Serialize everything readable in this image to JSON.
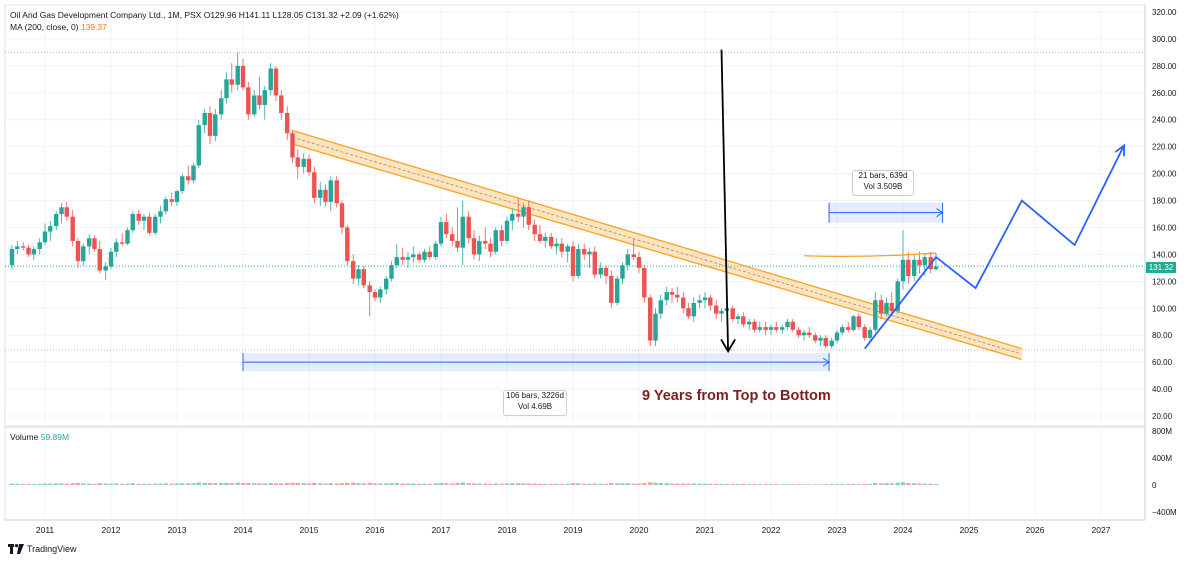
{
  "header": {
    "title": "Oil And Gas Development Company Ltd., 1M, PSX",
    "ohlc": "O129.96 H141.11 L128.05 C131.32 +2.09 (+1.62%)",
    "ma_label": "MA (200, close, 0)",
    "ma_value": "139.37"
  },
  "volume_panel": {
    "label": "Volume",
    "value": "59.89M"
  },
  "current_price_label": "131.32",
  "annotations": {
    "long_range": {
      "line1": "106 bars, 3226d",
      "line2": "Vol 4.69B"
    },
    "short_range": {
      "line1": "21 bars, 639d",
      "line2": "Vol 3.509B"
    },
    "note": "9 Years from Top to Bottom"
  },
  "branding": "TradingView",
  "colors": {
    "up": "#26a69a",
    "down": "#ef5350",
    "channel": "#f7a325",
    "projection": "#2962ff",
    "price_line": "#22ab94",
    "ma": "#f57c00"
  },
  "chart_data": {
    "type": "candlestick",
    "y_axis_ticks": [
      "320.00",
      "300.00",
      "280.00",
      "260.00",
      "240.00",
      "220.00",
      "200.00",
      "180.00",
      "160.00",
      "140.00",
      "120.00",
      "100.00",
      "80.00",
      "60.00",
      "40.00",
      "20.00"
    ],
    "volume_axis_ticks": [
      "800M",
      "400M",
      "0",
      "−400M"
    ],
    "x_axis_ticks": [
      "2011",
      "2012",
      "2013",
      "2014",
      "2015",
      "2016",
      "2017",
      "2018",
      "2019",
      "2020",
      "2021",
      "2022",
      "2023",
      "2024",
      "2025",
      "2026",
      "2027"
    ],
    "ylim": [
      10,
      324
    ],
    "reference_lines": {
      "high": 290,
      "low": 69,
      "current": 131.32
    },
    "ma200_value": 139.37,
    "candles": [
      [
        2010.5,
        132,
        147,
        129,
        144,
        20
      ],
      [
        2010.58,
        144,
        150,
        140,
        146,
        18
      ],
      [
        2010.67,
        146,
        149,
        143,
        145,
        15
      ],
      [
        2010.75,
        145,
        147,
        138,
        140,
        14
      ],
      [
        2010.83,
        140,
        146,
        136,
        144,
        13
      ],
      [
        2010.92,
        144,
        152,
        140,
        149,
        17
      ],
      [
        2011.0,
        149,
        163,
        147,
        157,
        22
      ],
      [
        2011.08,
        157,
        165,
        150,
        161,
        21
      ],
      [
        2011.17,
        161,
        172,
        158,
        170,
        25
      ],
      [
        2011.25,
        170,
        178,
        163,
        175,
        24
      ],
      [
        2011.33,
        175,
        179,
        165,
        168,
        19
      ],
      [
        2011.42,
        168,
        173,
        146,
        150,
        27
      ],
      [
        2011.5,
        150,
        152,
        130,
        135,
        30
      ],
      [
        2011.58,
        135,
        148,
        132,
        146,
        24
      ],
      [
        2011.67,
        146,
        155,
        140,
        152,
        20
      ],
      [
        2011.75,
        152,
        154,
        142,
        144,
        16
      ],
      [
        2011.83,
        144,
        150,
        126,
        128,
        28
      ],
      [
        2011.92,
        128,
        134,
        121,
        131,
        22
      ],
      [
        2012.0,
        131,
        145,
        129,
        142,
        20
      ],
      [
        2012.08,
        142,
        152,
        138,
        149,
        22
      ],
      [
        2012.17,
        149,
        156,
        146,
        148,
        18
      ],
      [
        2012.25,
        148,
        160,
        147,
        158,
        20
      ],
      [
        2012.33,
        158,
        172,
        156,
        170,
        26
      ],
      [
        2012.42,
        170,
        173,
        162,
        165,
        18
      ],
      [
        2012.5,
        165,
        170,
        158,
        168,
        16
      ],
      [
        2012.58,
        168,
        171,
        154,
        156,
        18
      ],
      [
        2012.67,
        156,
        170,
        154,
        168,
        20
      ],
      [
        2012.75,
        168,
        176,
        163,
        172,
        22
      ],
      [
        2012.83,
        172,
        183,
        170,
        181,
        24
      ],
      [
        2012.92,
        181,
        186,
        176,
        179,
        20
      ],
      [
        2013.0,
        179,
        188,
        176,
        187,
        22
      ],
      [
        2013.08,
        187,
        200,
        185,
        198,
        26
      ],
      [
        2013.17,
        198,
        206,
        192,
        195,
        24
      ],
      [
        2013.25,
        195,
        208,
        193,
        206,
        26
      ],
      [
        2013.33,
        206,
        240,
        204,
        236,
        38
      ],
      [
        2013.42,
        236,
        248,
        230,
        245,
        32
      ],
      [
        2013.5,
        245,
        250,
        222,
        228,
        30
      ],
      [
        2013.58,
        228,
        248,
        224,
        244,
        28
      ],
      [
        2013.67,
        244,
        262,
        240,
        256,
        30
      ],
      [
        2013.75,
        256,
        275,
        252,
        270,
        32
      ],
      [
        2013.83,
        270,
        282,
        260,
        266,
        28
      ],
      [
        2013.92,
        266,
        290,
        262,
        280,
        34
      ],
      [
        2014.0,
        280,
        285,
        262,
        264,
        28
      ],
      [
        2014.08,
        264,
        268,
        240,
        244,
        30
      ],
      [
        2014.17,
        244,
        262,
        242,
        258,
        26
      ],
      [
        2014.25,
        258,
        272,
        248,
        251,
        26
      ],
      [
        2014.33,
        251,
        265,
        240,
        262,
        24
      ],
      [
        2014.42,
        262,
        282,
        258,
        278,
        30
      ],
      [
        2014.5,
        278,
        280,
        254,
        258,
        26
      ],
      [
        2014.58,
        258,
        262,
        240,
        245,
        24
      ],
      [
        2014.67,
        245,
        250,
        225,
        230,
        30
      ],
      [
        2014.75,
        230,
        232,
        208,
        212,
        34
      ],
      [
        2014.83,
        212,
        218,
        196,
        205,
        32
      ],
      [
        2014.92,
        205,
        215,
        200,
        211,
        26
      ],
      [
        2015.0,
        211,
        214,
        198,
        201,
        24
      ],
      [
        2015.08,
        201,
        205,
        178,
        182,
        32
      ],
      [
        2015.17,
        182,
        194,
        176,
        188,
        26
      ],
      [
        2015.25,
        188,
        192,
        176,
        179,
        22
      ],
      [
        2015.33,
        179,
        198,
        172,
        195,
        28
      ],
      [
        2015.42,
        195,
        198,
        175,
        178,
        22
      ],
      [
        2015.5,
        178,
        180,
        155,
        160,
        30
      ],
      [
        2015.58,
        160,
        162,
        132,
        135,
        34
      ],
      [
        2015.67,
        135,
        140,
        118,
        122,
        36
      ],
      [
        2015.75,
        122,
        132,
        117,
        129,
        26
      ],
      [
        2015.83,
        129,
        131,
        115,
        117,
        24
      ],
      [
        2015.92,
        117,
        120,
        94,
        112,
        32
      ],
      [
        2016.0,
        112,
        114,
        105,
        108,
        24
      ],
      [
        2016.08,
        108,
        116,
        104,
        114,
        22
      ],
      [
        2016.17,
        114,
        124,
        110,
        122,
        24
      ],
      [
        2016.25,
        122,
        135,
        120,
        132,
        26
      ],
      [
        2016.33,
        132,
        148,
        130,
        138,
        28
      ],
      [
        2016.42,
        138,
        145,
        132,
        136,
        22
      ],
      [
        2016.5,
        136,
        142,
        130,
        138,
        20
      ],
      [
        2016.58,
        138,
        146,
        134,
        140,
        22
      ],
      [
        2016.67,
        140,
        142,
        134,
        136,
        18
      ],
      [
        2016.75,
        136,
        144,
        134,
        142,
        20
      ],
      [
        2016.83,
        142,
        146,
        136,
        138,
        18
      ],
      [
        2016.92,
        138,
        150,
        136,
        148,
        24
      ],
      [
        2017.0,
        148,
        168,
        146,
        164,
        30
      ],
      [
        2017.08,
        164,
        170,
        152,
        155,
        26
      ],
      [
        2017.17,
        155,
        160,
        146,
        150,
        22
      ],
      [
        2017.25,
        150,
        175,
        142,
        145,
        32
      ],
      [
        2017.33,
        145,
        180,
        132,
        168,
        38
      ],
      [
        2017.42,
        168,
        172,
        148,
        152,
        26
      ],
      [
        2017.5,
        152,
        158,
        136,
        140,
        24
      ],
      [
        2017.58,
        140,
        154,
        135,
        150,
        22
      ],
      [
        2017.67,
        150,
        160,
        144,
        148,
        20
      ],
      [
        2017.75,
        148,
        152,
        138,
        142,
        18
      ],
      [
        2017.83,
        142,
        160,
        140,
        158,
        24
      ],
      [
        2017.92,
        158,
        162,
        146,
        150,
        20
      ],
      [
        2018.0,
        150,
        168,
        148,
        165,
        24
      ],
      [
        2018.08,
        165,
        174,
        158,
        170,
        26
      ],
      [
        2018.17,
        170,
        182,
        164,
        168,
        26
      ],
      [
        2018.25,
        168,
        178,
        160,
        175,
        24
      ],
      [
        2018.33,
        175,
        180,
        158,
        162,
        22
      ],
      [
        2018.42,
        162,
        166,
        150,
        155,
        20
      ],
      [
        2018.5,
        155,
        162,
        148,
        150,
        18
      ],
      [
        2018.58,
        150,
        156,
        145,
        153,
        18
      ],
      [
        2018.67,
        153,
        156,
        144,
        146,
        16
      ],
      [
        2018.75,
        146,
        152,
        140,
        148,
        18
      ],
      [
        2018.83,
        148,
        152,
        138,
        142,
        16
      ],
      [
        2018.92,
        142,
        148,
        134,
        146,
        18
      ],
      [
        2019.0,
        146,
        150,
        120,
        124,
        28
      ],
      [
        2019.08,
        124,
        148,
        122,
        144,
        26
      ],
      [
        2019.17,
        144,
        148,
        136,
        140,
        20
      ],
      [
        2019.25,
        140,
        145,
        130,
        142,
        18
      ],
      [
        2019.33,
        142,
        146,
        122,
        125,
        22
      ],
      [
        2019.42,
        125,
        134,
        122,
        130,
        18
      ],
      [
        2019.5,
        130,
        132,
        118,
        124,
        18
      ],
      [
        2019.58,
        124,
        128,
        100,
        104,
        28
      ],
      [
        2019.67,
        104,
        124,
        102,
        122,
        26
      ],
      [
        2019.75,
        122,
        134,
        118,
        132,
        24
      ],
      [
        2019.83,
        132,
        144,
        128,
        140,
        26
      ],
      [
        2019.92,
        140,
        152,
        136,
        138,
        22
      ],
      [
        2020.0,
        138,
        142,
        126,
        130,
        22
      ],
      [
        2020.08,
        130,
        132,
        104,
        108,
        30
      ],
      [
        2020.17,
        108,
        110,
        72,
        76,
        40
      ],
      [
        2020.25,
        76,
        100,
        72,
        96,
        34
      ],
      [
        2020.33,
        96,
        110,
        92,
        106,
        30
      ],
      [
        2020.42,
        106,
        116,
        102,
        112,
        28
      ],
      [
        2020.5,
        112,
        115,
        104,
        110,
        22
      ],
      [
        2020.58,
        110,
        116,
        104,
        108,
        20
      ],
      [
        2020.67,
        108,
        112,
        96,
        100,
        22
      ],
      [
        2020.75,
        100,
        104,
        92,
        94,
        20
      ],
      [
        2020.83,
        94,
        108,
        90,
        104,
        22
      ],
      [
        2020.92,
        104,
        110,
        100,
        106,
        20
      ],
      [
        2021.0,
        106,
        112,
        100,
        108,
        20
      ],
      [
        2021.08,
        108,
        110,
        98,
        102,
        18
      ],
      [
        2021.17,
        102,
        106,
        92,
        96,
        18
      ],
      [
        2021.25,
        96,
        100,
        90,
        98,
        16
      ],
      [
        2021.33,
        98,
        104,
        94,
        100,
        16
      ],
      [
        2021.42,
        100,
        102,
        90,
        92,
        16
      ],
      [
        2021.5,
        92,
        96,
        88,
        94,
        14
      ],
      [
        2021.58,
        94,
        97,
        86,
        88,
        14
      ],
      [
        2021.67,
        88,
        92,
        84,
        90,
        12
      ],
      [
        2021.75,
        90,
        92,
        82,
        84,
        14
      ],
      [
        2021.83,
        84,
        90,
        82,
        86,
        12
      ],
      [
        2021.92,
        86,
        90,
        80,
        84,
        12
      ],
      [
        2022.0,
        84,
        88,
        80,
        86,
        12
      ],
      [
        2022.08,
        86,
        90,
        82,
        84,
        10
      ],
      [
        2022.17,
        84,
        88,
        81,
        86,
        10
      ],
      [
        2022.25,
        86,
        92,
        84,
        90,
        12
      ],
      [
        2022.33,
        90,
        92,
        82,
        84,
        12
      ],
      [
        2022.42,
        84,
        86,
        78,
        80,
        12
      ],
      [
        2022.5,
        80,
        84,
        76,
        82,
        10
      ],
      [
        2022.58,
        82,
        86,
        78,
        80,
        10
      ],
      [
        2022.67,
        80,
        82,
        74,
        76,
        10
      ],
      [
        2022.75,
        76,
        80,
        72,
        78,
        10
      ],
      [
        2022.83,
        78,
        80,
        70,
        72,
        12
      ],
      [
        2022.92,
        72,
        78,
        70,
        76,
        12
      ],
      [
        2023.0,
        76,
        84,
        74,
        82,
        14
      ],
      [
        2023.08,
        82,
        88,
        80,
        86,
        14
      ],
      [
        2023.17,
        86,
        90,
        82,
        84,
        14
      ],
      [
        2023.25,
        84,
        95,
        83,
        94,
        16
      ],
      [
        2023.33,
        94,
        96,
        84,
        86,
        14
      ],
      [
        2023.42,
        86,
        88,
        76,
        78,
        14
      ],
      [
        2023.5,
        78,
        86,
        76,
        84,
        16
      ],
      [
        2023.58,
        84,
        112,
        82,
        106,
        30
      ],
      [
        2023.67,
        106,
        110,
        92,
        96,
        26
      ],
      [
        2023.75,
        96,
        108,
        94,
        104,
        28
      ],
      [
        2023.83,
        104,
        112,
        96,
        98,
        24
      ],
      [
        2023.92,
        98,
        122,
        96,
        120,
        34
      ],
      [
        2024.0,
        120,
        158,
        114,
        136,
        40
      ],
      [
        2024.08,
        136,
        142,
        118,
        124,
        30
      ],
      [
        2024.17,
        124,
        140,
        120,
        136,
        26
      ],
      [
        2024.25,
        136,
        142,
        126,
        132,
        22
      ],
      [
        2024.33,
        132,
        140,
        124,
        138,
        20
      ],
      [
        2024.42,
        138,
        142,
        126,
        129,
        18
      ],
      [
        2024.5,
        129,
        141,
        128,
        131,
        12
      ]
    ],
    "drawings": {
      "channel_upper": [
        [
          2014.75,
          232
        ],
        [
          2025.8,
          70
        ]
      ],
      "channel_lower": [
        [
          2014.75,
          222
        ],
        [
          2025.8,
          62
        ]
      ],
      "arrow_down": [
        [
          2021.25,
          292
        ],
        [
          2021.35,
          68
        ]
      ],
      "range_long": {
        "from": 2014.0,
        "to": 2022.88,
        "price": 60
      },
      "range_short": {
        "from": 2022.88,
        "to": 2024.6,
        "price": 171
      },
      "resistance_curve": [
        [
          2022.5,
          139
        ],
        [
          2023.5,
          137.5
        ],
        [
          2024.5,
          141
        ]
      ],
      "projection": [
        [
          2023.42,
          70
        ],
        [
          2024.5,
          138
        ],
        [
          2025.1,
          115
        ],
        [
          2025.8,
          180
        ],
        [
          2026.6,
          147
        ],
        [
          2027.35,
          221
        ]
      ]
    }
  }
}
